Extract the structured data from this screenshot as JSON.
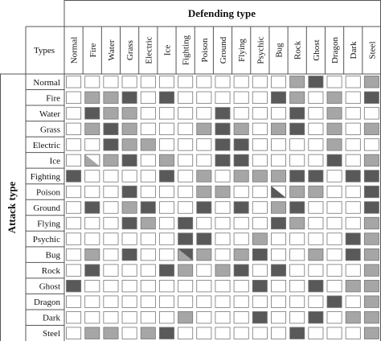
{
  "title": "Defending type",
  "corner_label": "Types",
  "row_axis_label": "Attack type",
  "types": [
    "Normal",
    "Fire",
    "Water",
    "Grass",
    "Electric",
    "Ice",
    "Fighting",
    "Poison",
    "Ground",
    "Flying",
    "Psychic",
    "Bug",
    "Rock",
    "Ghost",
    "Dragon",
    "Dark",
    "Steel"
  ],
  "legend_colors": {
    "0": "#ffffff",
    "1": "#a6a6a6",
    "2": "#595959"
  },
  "chart_data": {
    "type": "heatmap",
    "title": "Defending type",
    "xlabel": "Defending type",
    "ylabel": "Attack type",
    "columns": [
      "Normal",
      "Fire",
      "Water",
      "Grass",
      "Electric",
      "Ice",
      "Fighting",
      "Poison",
      "Ground",
      "Flying",
      "Psychic",
      "Bug",
      "Rock",
      "Ghost",
      "Dragon",
      "Dark",
      "Steel"
    ],
    "rows": [
      "Normal",
      "Fire",
      "Water",
      "Grass",
      "Electric",
      "Ice",
      "Fighting",
      "Poison",
      "Ground",
      "Flying",
      "Psychic",
      "Bug",
      "Rock",
      "Ghost",
      "Dragon",
      "Dark",
      "Steel"
    ],
    "values": [
      [
        0,
        0,
        0,
        0,
        0,
        0,
        0,
        0,
        0,
        0,
        0,
        0,
        1,
        2,
        0,
        0,
        1
      ],
      [
        0,
        1,
        1,
        2,
        0,
        2,
        0,
        0,
        0,
        0,
        0,
        2,
        1,
        0,
        1,
        0,
        2
      ],
      [
        0,
        2,
        1,
        1,
        0,
        0,
        0,
        0,
        2,
        0,
        0,
        0,
        2,
        0,
        1,
        0,
        0
      ],
      [
        0,
        1,
        2,
        1,
        0,
        0,
        0,
        1,
        2,
        1,
        0,
        1,
        2,
        0,
        1,
        0,
        1
      ],
      [
        0,
        0,
        2,
        1,
        1,
        0,
        0,
        0,
        2,
        2,
        0,
        0,
        0,
        0,
        1,
        0,
        0
      ],
      [
        0,
        "1/0",
        1,
        2,
        0,
        1,
        0,
        0,
        2,
        2,
        0,
        0,
        0,
        0,
        2,
        0,
        1
      ],
      [
        2,
        0,
        0,
        0,
        0,
        2,
        0,
        1,
        0,
        1,
        1,
        1,
        2,
        2,
        0,
        2,
        2
      ],
      [
        0,
        0,
        0,
        2,
        0,
        0,
        0,
        1,
        1,
        0,
        0,
        "2/0",
        1,
        1,
        0,
        0,
        2
      ],
      [
        0,
        2,
        0,
        1,
        2,
        0,
        0,
        2,
        0,
        2,
        0,
        1,
        2,
        0,
        0,
        0,
        2
      ],
      [
        0,
        0,
        0,
        2,
        1,
        0,
        2,
        0,
        0,
        0,
        0,
        2,
        1,
        0,
        0,
        0,
        1
      ],
      [
        0,
        0,
        0,
        0,
        0,
        0,
        2,
        2,
        0,
        0,
        1,
        0,
        0,
        0,
        0,
        2,
        1
      ],
      [
        0,
        1,
        0,
        2,
        0,
        0,
        "1/2",
        1,
        0,
        1,
        2,
        0,
        0,
        1,
        0,
        2,
        1
      ],
      [
        0,
        2,
        0,
        0,
        0,
        2,
        1,
        0,
        1,
        2,
        0,
        2,
        0,
        0,
        0,
        0,
        1
      ],
      [
        2,
        0,
        0,
        0,
        0,
        0,
        0,
        0,
        0,
        0,
        2,
        0,
        0,
        2,
        0,
        1,
        1
      ],
      [
        0,
        0,
        0,
        0,
        0,
        0,
        0,
        0,
        0,
        0,
        0,
        0,
        0,
        0,
        2,
        0,
        1
      ],
      [
        0,
        0,
        0,
        0,
        0,
        0,
        1,
        0,
        0,
        0,
        2,
        0,
        0,
        2,
        0,
        1,
        1
      ],
      [
        0,
        1,
        1,
        0,
        1,
        2,
        0,
        0,
        0,
        0,
        0,
        0,
        2,
        0,
        0,
        0,
        1
      ]
    ]
  }
}
